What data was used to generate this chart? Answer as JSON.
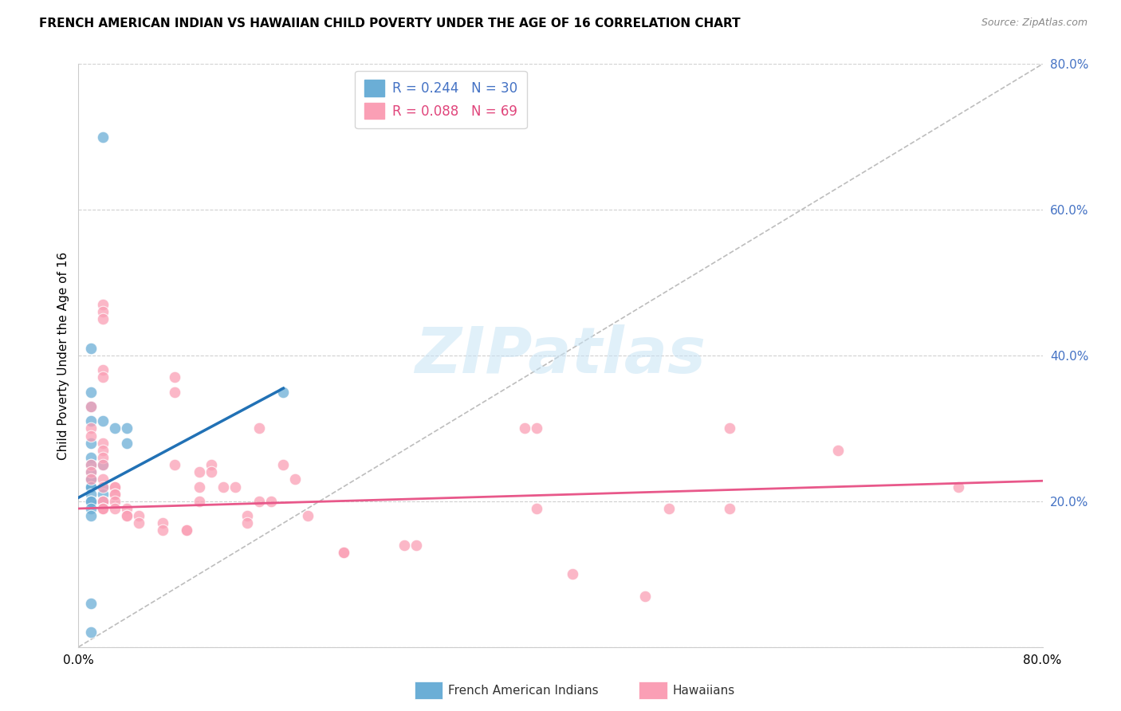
{
  "title": "FRENCH AMERICAN INDIAN VS HAWAIIAN CHILD POVERTY UNDER THE AGE OF 16 CORRELATION CHART",
  "source": "Source: ZipAtlas.com",
  "ylabel": "Child Poverty Under the Age of 16",
  "xlim": [
    0.0,
    0.8
  ],
  "ylim": [
    0.0,
    0.8
  ],
  "yticks": [
    0.0,
    0.2,
    0.4,
    0.6,
    0.8
  ],
  "ytick_labels": [
    "",
    "20.0%",
    "40.0%",
    "60.0%",
    "80.0%"
  ],
  "xtick_positions": [
    0.0,
    0.1,
    0.2,
    0.3,
    0.4,
    0.5,
    0.6,
    0.7,
    0.8
  ],
  "xtick_labels": [
    "0.0%",
    "",
    "",
    "",
    "",
    "",
    "",
    "",
    "80.0%"
  ],
  "legend_blue_label": "R = 0.244   N = 30",
  "legend_pink_label": "R = 0.088   N = 69",
  "legend_blue_color": "#6baed6",
  "legend_pink_color": "#fa9fb5",
  "blue_line_color": "#2171b5",
  "pink_line_color": "#e8588a",
  "dashed_line_color": "#bdbdbd",
  "watermark": "ZIPatlas",
  "blue_points": [
    [
      0.02,
      0.7
    ],
    [
      0.01,
      0.41
    ],
    [
      0.01,
      0.35
    ],
    [
      0.01,
      0.33
    ],
    [
      0.01,
      0.31
    ],
    [
      0.02,
      0.31
    ],
    [
      0.01,
      0.28
    ],
    [
      0.01,
      0.26
    ],
    [
      0.01,
      0.25
    ],
    [
      0.02,
      0.25
    ],
    [
      0.01,
      0.24
    ],
    [
      0.01,
      0.23
    ],
    [
      0.01,
      0.23
    ],
    [
      0.01,
      0.22
    ],
    [
      0.01,
      0.22
    ],
    [
      0.01,
      0.22
    ],
    [
      0.02,
      0.22
    ],
    [
      0.02,
      0.21
    ],
    [
      0.01,
      0.21
    ],
    [
      0.01,
      0.2
    ],
    [
      0.02,
      0.2
    ],
    [
      0.01,
      0.2
    ],
    [
      0.01,
      0.19
    ],
    [
      0.01,
      0.18
    ],
    [
      0.03,
      0.3
    ],
    [
      0.04,
      0.3
    ],
    [
      0.04,
      0.28
    ],
    [
      0.17,
      0.35
    ],
    [
      0.01,
      0.06
    ],
    [
      0.01,
      0.02
    ]
  ],
  "pink_points": [
    [
      0.02,
      0.47
    ],
    [
      0.02,
      0.46
    ],
    [
      0.02,
      0.45
    ],
    [
      0.02,
      0.38
    ],
    [
      0.02,
      0.37
    ],
    [
      0.08,
      0.37
    ],
    [
      0.08,
      0.35
    ],
    [
      0.01,
      0.33
    ],
    [
      0.01,
      0.3
    ],
    [
      0.01,
      0.29
    ],
    [
      0.02,
      0.28
    ],
    [
      0.02,
      0.27
    ],
    [
      0.02,
      0.26
    ],
    [
      0.01,
      0.25
    ],
    [
      0.02,
      0.25
    ],
    [
      0.08,
      0.25
    ],
    [
      0.01,
      0.24
    ],
    [
      0.01,
      0.23
    ],
    [
      0.02,
      0.23
    ],
    [
      0.02,
      0.22
    ],
    [
      0.03,
      0.22
    ],
    [
      0.03,
      0.22
    ],
    [
      0.03,
      0.21
    ],
    [
      0.03,
      0.21
    ],
    [
      0.02,
      0.2
    ],
    [
      0.02,
      0.2
    ],
    [
      0.03,
      0.2
    ],
    [
      0.02,
      0.19
    ],
    [
      0.02,
      0.19
    ],
    [
      0.02,
      0.19
    ],
    [
      0.03,
      0.19
    ],
    [
      0.04,
      0.19
    ],
    [
      0.04,
      0.18
    ],
    [
      0.04,
      0.18
    ],
    [
      0.05,
      0.18
    ],
    [
      0.05,
      0.17
    ],
    [
      0.07,
      0.17
    ],
    [
      0.07,
      0.16
    ],
    [
      0.09,
      0.16
    ],
    [
      0.09,
      0.16
    ],
    [
      0.1,
      0.24
    ],
    [
      0.1,
      0.22
    ],
    [
      0.1,
      0.2
    ],
    [
      0.11,
      0.25
    ],
    [
      0.11,
      0.24
    ],
    [
      0.12,
      0.22
    ],
    [
      0.13,
      0.22
    ],
    [
      0.14,
      0.18
    ],
    [
      0.14,
      0.17
    ],
    [
      0.15,
      0.3
    ],
    [
      0.15,
      0.2
    ],
    [
      0.16,
      0.2
    ],
    [
      0.17,
      0.25
    ],
    [
      0.18,
      0.23
    ],
    [
      0.19,
      0.18
    ],
    [
      0.22,
      0.13
    ],
    [
      0.22,
      0.13
    ],
    [
      0.27,
      0.14
    ],
    [
      0.28,
      0.14
    ],
    [
      0.38,
      0.19
    ],
    [
      0.37,
      0.3
    ],
    [
      0.38,
      0.3
    ],
    [
      0.41,
      0.1
    ],
    [
      0.47,
      0.07
    ],
    [
      0.49,
      0.19
    ],
    [
      0.54,
      0.19
    ],
    [
      0.54,
      0.3
    ],
    [
      0.63,
      0.27
    ],
    [
      0.73,
      0.22
    ]
  ],
  "blue_trendline_x": [
    0.0,
    0.17
  ],
  "blue_trendline_y": [
    0.205,
    0.355
  ],
  "pink_trendline_x": [
    0.0,
    0.8
  ],
  "pink_trendline_y": [
    0.19,
    0.228
  ],
  "dashed_trendline_x": [
    0.0,
    0.8
  ],
  "dashed_trendline_y": [
    0.0,
    0.8
  ],
  "bottom_legend": [
    {
      "label": "French American Indians",
      "color": "#6baed6"
    },
    {
      "label": "Hawaiians",
      "color": "#fa9fb5"
    }
  ]
}
